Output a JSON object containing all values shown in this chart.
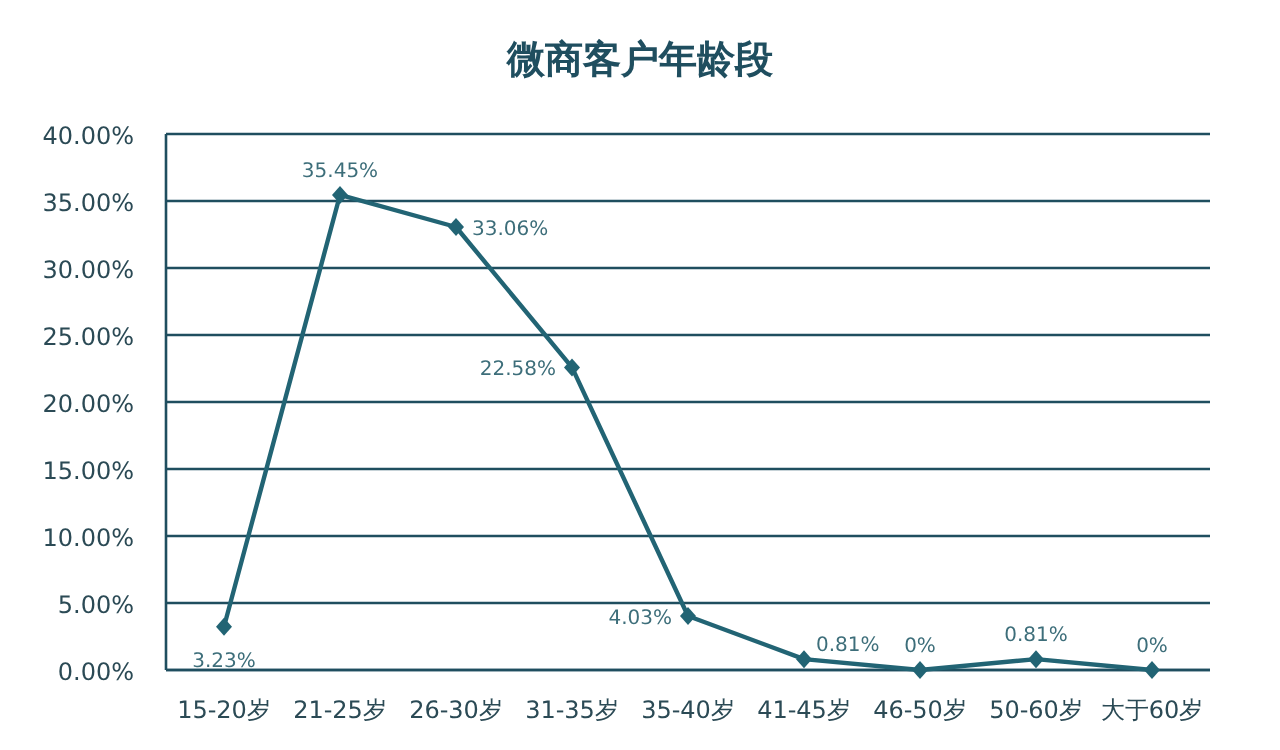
{
  "chart_data": {
    "type": "line",
    "title": "微商客户年龄段",
    "categories": [
      "15-20岁",
      "21-25岁",
      "26-30岁",
      "31-35岁",
      "35-40岁",
      "41-45岁",
      "46-50岁",
      "50-60岁",
      "大于60岁"
    ],
    "series": [
      {
        "color": "#226474",
        "values": [
          3.23,
          35.45,
          33.06,
          22.58,
          4.03,
          0.81,
          0,
          0.81,
          0
        ],
        "value_labels": [
          "3.23%",
          "35.45%",
          "33.06%",
          "22.58%",
          "4.03%",
          "0.81%",
          "0%",
          "0.81%",
          "0%"
        ]
      }
    ],
    "ylim": [
      0,
      40
    ],
    "yticks": [
      {
        "value": 0,
        "label": "0.00%"
      },
      {
        "value": 5,
        "label": "5.00%"
      },
      {
        "value": 10,
        "label": "10.00%"
      },
      {
        "value": 15,
        "label": "15.00%"
      },
      {
        "value": 20,
        "label": "20.00%"
      },
      {
        "value": 25,
        "label": "25.00%"
      },
      {
        "value": 30,
        "label": "30.00%"
      },
      {
        "value": 35,
        "label": "35.00%"
      },
      {
        "value": 40,
        "label": "40.00%"
      }
    ],
    "grid": "y",
    "marker": "diamond",
    "line_style": "solid"
  }
}
